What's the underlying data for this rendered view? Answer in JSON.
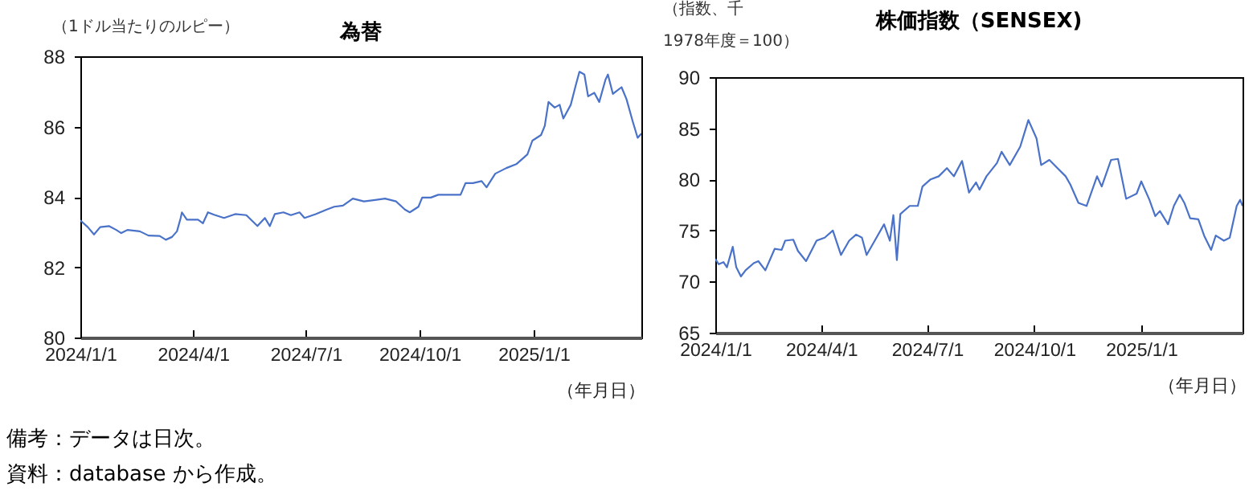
{
  "chart_data": [
    {
      "type": "line",
      "title": "為替",
      "ylabel": "（1ドル当たりのルピー）",
      "xlabel": "（年月日）",
      "grid": false,
      "xlim": [
        "2024-01-01",
        "2025-03-29"
      ],
      "xticks": [
        {
          "value": "2024-01-01",
          "label": "2024/1/1"
        },
        {
          "value": "2024-04-01",
          "label": "2024/4/1"
        },
        {
          "value": "2024-07-01",
          "label": "2024/7/1"
        },
        {
          "value": "2024-10-01",
          "label": "2024/10/1"
        },
        {
          "value": "2025-01-01",
          "label": "2025/1/1"
        }
      ],
      "ylim": [
        80,
        88
      ],
      "yticks": [
        80,
        82,
        84,
        86,
        88
      ],
      "annotations": [
        "備考：データは日次。",
        "資料：database から作成。"
      ],
      "series": [
        {
          "color": "#4a72c8",
          "x": [
            "2024-01-01",
            "2024-01-07",
            "2024-01-12",
            "2024-01-17",
            "2024-01-24",
            "2024-01-30",
            "2024-02-03",
            "2024-02-08",
            "2024-02-18",
            "2024-02-25",
            "2024-03-05",
            "2024-03-10",
            "2024-03-15",
            "2024-03-19",
            "2024-03-22",
            "2024-03-23",
            "2024-03-27",
            "2024-04-05",
            "2024-04-09",
            "2024-04-13",
            "2024-04-18",
            "2024-04-26",
            "2024-05-05",
            "2024-05-14",
            "2024-05-23",
            "2024-05-29",
            "2024-06-02",
            "2024-06-06",
            "2024-06-13",
            "2024-06-19",
            "2024-06-26",
            "2024-06-30",
            "2024-07-09",
            "2024-07-18",
            "2024-07-24",
            "2024-07-31",
            "2024-08-08",
            "2024-08-17",
            "2024-08-26",
            "2024-09-03",
            "2024-09-12",
            "2024-09-19",
            "2024-09-23",
            "2024-09-30",
            "2024-10-03",
            "2024-10-10",
            "2024-10-16",
            "2024-10-25",
            "2024-11-03",
            "2024-11-07",
            "2024-11-13",
            "2024-11-20",
            "2024-11-24",
            "2024-12-01",
            "2024-12-10",
            "2024-12-18",
            "2024-12-27",
            "2024-12-31",
            "2025-01-07",
            "2025-01-10",
            "2025-01-13",
            "2025-01-18",
            "2025-01-22",
            "2025-01-25",
            "2025-01-31",
            "2025-02-04",
            "2025-02-07",
            "2025-02-11",
            "2025-02-14",
            "2025-02-19",
            "2025-02-23",
            "2025-02-28",
            "2025-03-02",
            "2025-03-06",
            "2025-03-13",
            "2025-03-17",
            "2025-03-22",
            "2025-03-26",
            "2025-03-29"
          ],
          "values": [
            83.33,
            83.14,
            82.93,
            83.14,
            83.17,
            83.06,
            82.97,
            83.06,
            83.02,
            82.9,
            82.89,
            82.78,
            82.86,
            83.02,
            83.4,
            83.56,
            83.35,
            83.35,
            83.25,
            83.56,
            83.49,
            83.4,
            83.51,
            83.48,
            83.17,
            83.4,
            83.17,
            83.51,
            83.56,
            83.48,
            83.56,
            83.4,
            83.51,
            83.64,
            83.72,
            83.75,
            83.95,
            83.87,
            83.91,
            83.95,
            83.87,
            83.64,
            83.56,
            83.72,
            83.98,
            83.98,
            84.06,
            84.06,
            84.06,
            84.39,
            84.39,
            84.45,
            84.27,
            84.66,
            84.82,
            84.93,
            85.21,
            85.6,
            85.76,
            86.02,
            86.7,
            86.54,
            86.62,
            86.23,
            86.62,
            87.17,
            87.56,
            87.48,
            86.86,
            86.96,
            86.7,
            87.33,
            87.48,
            86.93,
            87.12,
            86.78,
            86.15,
            85.68,
            85.8
          ]
        }
      ]
    },
    {
      "type": "line",
      "title": "株価指数（SENSEX)",
      "ylabel": "（指数、千\n1978年度＝100）",
      "xlabel": "（年月日）",
      "grid": false,
      "xlim": [
        "2024-01-01",
        "2025-03-29"
      ],
      "xticks": [
        {
          "value": "2024-01-01",
          "label": "2024/1/1"
        },
        {
          "value": "2024-04-01",
          "label": "2024/4/1"
        },
        {
          "value": "2024-07-01",
          "label": "2024/7/1"
        },
        {
          "value": "2024-10-01",
          "label": "2024/10/1"
        },
        {
          "value": "2025-01-01",
          "label": "2025/1/1"
        }
      ],
      "ylim": [
        65,
        90
      ],
      "yticks": [
        65,
        70,
        75,
        80,
        85,
        90
      ],
      "series": [
        {
          "color": "#4a72c8",
          "x": [
            "2024-01-01",
            "2024-01-04",
            "2024-01-08",
            "2024-01-11",
            "2024-01-16",
            "2024-01-19",
            "2024-01-23",
            "2024-01-27",
            "2024-02-03",
            "2024-02-07",
            "2024-02-13",
            "2024-02-21",
            "2024-02-27",
            "2024-03-01",
            "2024-03-08",
            "2024-03-12",
            "2024-03-19",
            "2024-03-28",
            "2024-04-04",
            "2024-04-11",
            "2024-04-18",
            "2024-04-25",
            "2024-05-01",
            "2024-05-06",
            "2024-05-10",
            "2024-05-17",
            "2024-05-25",
            "2024-05-30",
            "2024-06-02",
            "2024-06-05",
            "2024-06-08",
            "2024-06-16",
            "2024-06-23",
            "2024-06-27",
            "2024-07-04",
            "2024-07-11",
            "2024-07-18",
            "2024-07-24",
            "2024-07-31",
            "2024-08-06",
            "2024-08-12",
            "2024-08-15",
            "2024-08-21",
            "2024-08-30",
            "2024-09-03",
            "2024-09-10",
            "2024-09-19",
            "2024-09-26",
            "2024-10-03",
            "2024-10-07",
            "2024-10-14",
            "2024-10-21",
            "2024-10-28",
            "2024-11-01",
            "2024-11-08",
            "2024-11-15",
            "2024-11-24",
            "2024-11-28",
            "2024-12-06",
            "2024-12-12",
            "2024-12-19",
            "2024-12-28",
            "2025-01-01",
            "2025-01-08",
            "2025-01-13",
            "2025-01-17",
            "2025-01-24",
            "2025-01-29",
            "2025-02-03",
            "2025-02-07",
            "2025-02-12",
            "2025-02-19",
            "2025-02-24",
            "2025-03-02",
            "2025-03-06",
            "2025-03-13",
            "2025-03-18",
            "2025-03-24",
            "2025-03-27",
            "2025-03-29"
          ],
          "values": [
            72.2,
            71.7,
            71.9,
            71.4,
            73.4,
            71.4,
            70.5,
            71.1,
            71.8,
            72,
            71.1,
            73.2,
            73.1,
            74,
            74.1,
            73,
            72,
            74,
            74.3,
            75,
            72.6,
            74,
            74.6,
            74.3,
            72.6,
            74,
            75.6,
            74,
            76.5,
            72.1,
            76.6,
            77.4,
            77.4,
            79.3,
            80,
            80.3,
            81.1,
            80.3,
            81.8,
            78.7,
            79.7,
            79,
            80.3,
            81.6,
            82.7,
            81.4,
            83.2,
            85.8,
            84,
            81.4,
            81.9,
            81.1,
            80.3,
            79.5,
            77.7,
            77.4,
            80.3,
            79.3,
            81.9,
            82,
            78.1,
            78.6,
            79.8,
            78,
            76.4,
            76.9,
            75.6,
            77.4,
            78.5,
            77.7,
            76.2,
            76.1,
            74.5,
            73.1,
            74.5,
            74,
            74.3,
            77.4,
            78,
            77.4
          ]
        }
      ]
    }
  ]
}
